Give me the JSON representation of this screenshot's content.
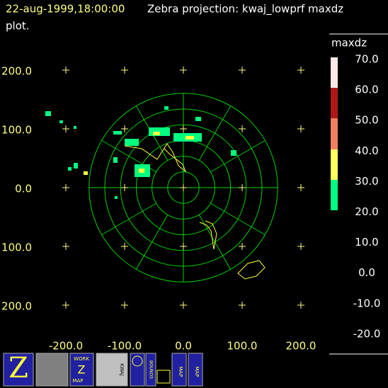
{
  "header": {
    "timestamp": "22-aug-1999,18:00:00",
    "title_line1": "Zebra projection: kwaj_lowprf maxdz",
    "title_line2": "plot."
  },
  "plot": {
    "y_labels": [
      "200.0",
      "100.0",
      "0.0",
      "100.0",
      "200.0"
    ],
    "x_labels": [
      "-200.0",
      "-100.0",
      "0.0",
      "100.0",
      "200.0"
    ]
  },
  "colorbar": {
    "field": "maxdz",
    "labels": [
      "70.0",
      "60.0",
      "50.0",
      "40.0",
      "30.0",
      "20.0",
      "10.0",
      "0.0",
      "-10.0",
      "-20.0"
    ]
  },
  "toolbar": {
    "work_map": [
      "WORK",
      "Z",
      "MAP"
    ],
    "kwaj": "KWAJ",
    "bounds": "BOUNDS",
    "map1": "MAP",
    "map2": "MAP"
  }
}
